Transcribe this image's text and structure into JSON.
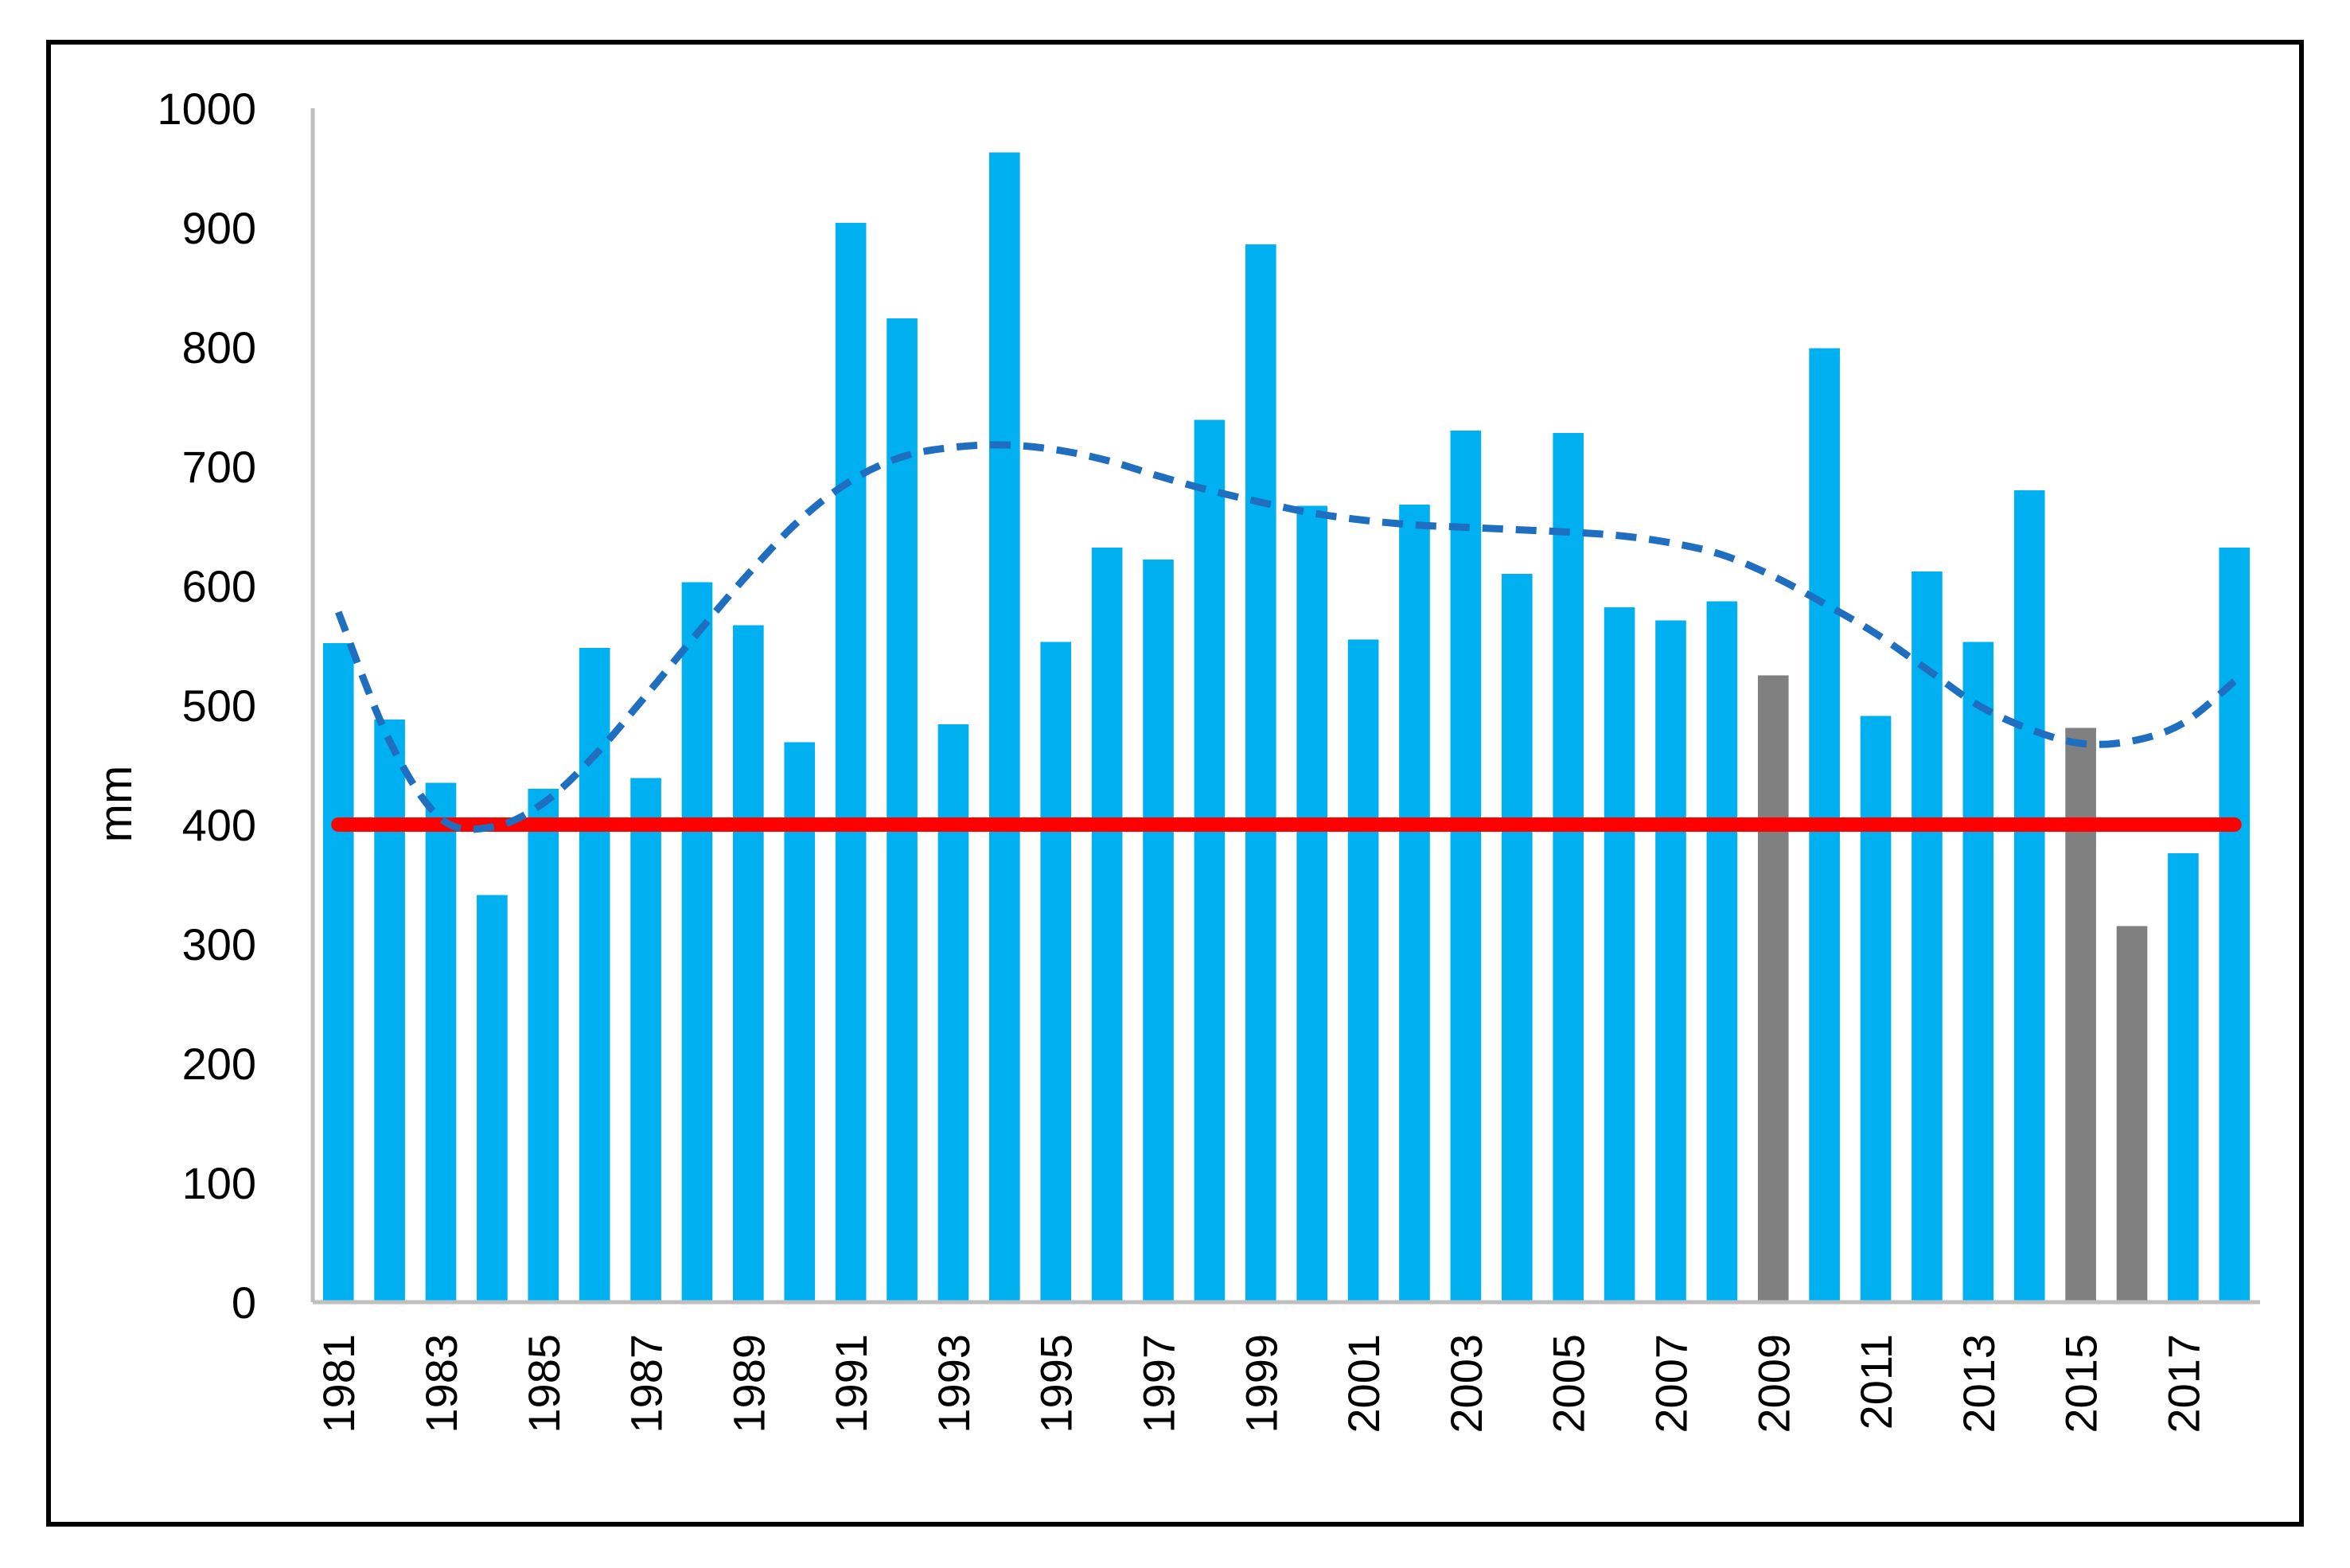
{
  "chart_data": {
    "type": "bar",
    "title": "",
    "xlabel": "",
    "ylabel": "mm",
    "ylim": [
      0,
      1000
    ],
    "yticks": [
      "0",
      "100",
      "200",
      "300",
      "400",
      "500",
      "600",
      "700",
      "800",
      "900",
      "1000"
    ],
    "categories": [
      "1981",
      "1982",
      "1983",
      "1984",
      "1985",
      "1986",
      "1987",
      "1988",
      "1989",
      "1990",
      "1991",
      "1992",
      "1993",
      "1994",
      "1995",
      "1996",
      "1997",
      "1998",
      "1999",
      "2000",
      "2001",
      "2002",
      "2003",
      "2004",
      "2005",
      "2006",
      "2007",
      "2008",
      "2009",
      "2010",
      "2011",
      "2012",
      "2013",
      "2014",
      "2015",
      "2016",
      "2017",
      "2018"
    ],
    "xtick_labels": [
      "1981",
      "1983",
      "1985",
      "1987",
      "1989",
      "1991",
      "1993",
      "1995",
      "1997",
      "1999",
      "2001",
      "2003",
      "2005",
      "2007",
      "2009",
      "2011",
      "2013",
      "2015",
      "2017"
    ],
    "values": [
      552,
      488,
      435,
      341,
      430,
      548,
      439,
      603,
      567,
      469,
      904,
      824,
      484,
      963,
      553,
      632,
      622,
      739,
      886,
      667,
      555,
      668,
      730,
      610,
      728,
      582,
      571,
      587,
      525,
      799,
      491,
      612,
      553,
      680,
      481,
      315,
      376,
      632
    ],
    "bar_colors": [
      "#00B0F0",
      "#00B0F0",
      "#00B0F0",
      "#00B0F0",
      "#00B0F0",
      "#00B0F0",
      "#00B0F0",
      "#00B0F0",
      "#00B0F0",
      "#00B0F0",
      "#00B0F0",
      "#00B0F0",
      "#00B0F0",
      "#00B0F0",
      "#00B0F0",
      "#00B0F0",
      "#00B0F0",
      "#00B0F0",
      "#00B0F0",
      "#00B0F0",
      "#00B0F0",
      "#00B0F0",
      "#00B0F0",
      "#00B0F0",
      "#00B0F0",
      "#00B0F0",
      "#00B0F0",
      "#00B0F0",
      "#808080",
      "#00B0F0",
      "#00B0F0",
      "#00B0F0",
      "#00B0F0",
      "#00B0F0",
      "#808080",
      "#808080",
      "#00B0F0",
      "#00B0F0"
    ],
    "threshold": {
      "value": 400,
      "color": "#FF0000"
    },
    "trend": {
      "style": "dashed",
      "color": "#1F6EBF",
      "x": [
        "1981",
        "1982",
        "1983",
        "1984",
        "1985",
        "1986",
        "1987",
        "1988",
        "1989",
        "1990",
        "1991",
        "1992",
        "1993",
        "1994",
        "1995",
        "1996",
        "1997",
        "1998",
        "1999",
        "2000",
        "2001",
        "2002",
        "2003",
        "2004",
        "2005",
        "2006",
        "2007",
        "2008",
        "2009",
        "2010",
        "2011",
        "2012",
        "2013",
        "2014",
        "2015",
        "2016",
        "2017",
        "2018"
      ],
      "values": [
        578,
        470,
        405,
        398,
        418,
        458,
        508,
        560,
        610,
        655,
        688,
        708,
        716,
        718,
        714,
        705,
        692,
        680,
        670,
        661,
        655,
        651,
        649,
        647,
        645,
        642,
        636,
        626,
        608,
        585,
        560,
        530,
        500,
        480,
        468,
        470,
        485,
        520
      ]
    }
  }
}
